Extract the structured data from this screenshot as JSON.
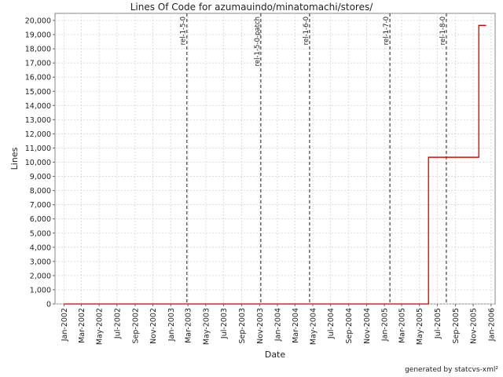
{
  "chart_data": {
    "type": "line",
    "title": "Lines Of Code for azumauindo/minatomachi/stores/",
    "xlabel": "Date",
    "ylabel": "Lines",
    "grid": true,
    "xlim": [
      "2001-12-01",
      "2006-01-15"
    ],
    "ylim": [
      0,
      20500
    ],
    "y_ticks": [
      0,
      1000,
      2000,
      3000,
      4000,
      5000,
      6000,
      7000,
      8000,
      9000,
      10000,
      11000,
      12000,
      13000,
      14000,
      15000,
      16000,
      17000,
      18000,
      19000,
      20000
    ],
    "y_tick_labels": [
      "0",
      "1,000",
      "2,000",
      "3,000",
      "4,000",
      "5,000",
      "6,000",
      "7,000",
      "8,000",
      "9,000",
      "10,000",
      "11,000",
      "12,000",
      "13,000",
      "14,000",
      "15,000",
      "16,000",
      "17,000",
      "18,000",
      "19,000",
      "20,000"
    ],
    "x_ticks": [
      "2002-01-01",
      "2002-03-01",
      "2002-05-01",
      "2002-07-01",
      "2002-09-01",
      "2002-11-01",
      "2003-01-01",
      "2003-03-01",
      "2003-05-01",
      "2003-07-01",
      "2003-09-01",
      "2003-11-01",
      "2004-01-01",
      "2004-03-01",
      "2004-05-01",
      "2004-07-01",
      "2004-09-01",
      "2004-11-01",
      "2005-01-01",
      "2005-03-01",
      "2005-05-01",
      "2005-07-01",
      "2005-09-01",
      "2005-11-01",
      "2006-01-01"
    ],
    "x_tick_labels": [
      "Jan-2002",
      "Mar-2002",
      "May-2002",
      "Jul-2002",
      "Sep-2002",
      "Nov-2002",
      "Jan-2003",
      "Mar-2003",
      "May-2003",
      "Jul-2003",
      "Sep-2003",
      "Nov-2003",
      "Jan-2004",
      "Mar-2004",
      "May-2004",
      "Jul-2004",
      "Sep-2004",
      "Nov-2004",
      "Jan-2005",
      "Mar-2005",
      "May-2005",
      "Jul-2005",
      "Sep-2005",
      "Nov-2005",
      "Jan-2006"
    ],
    "series": [
      {
        "color": "#cc0000",
        "points": [
          {
            "x": "2002-01-01",
            "y": 0
          },
          {
            "x": "2005-06-01",
            "y": 0
          },
          {
            "x": "2005-06-01",
            "y": 10350
          },
          {
            "x": "2005-11-20",
            "y": 10350
          },
          {
            "x": "2005-11-20",
            "y": 19650
          },
          {
            "x": "2005-12-15",
            "y": 19650
          }
        ]
      }
    ],
    "markers": [
      {
        "date": "2003-02-25",
        "label": "rel-1-5-0"
      },
      {
        "date": "2003-11-05",
        "label": "rel-1-5-0-patch"
      },
      {
        "date": "2004-04-20",
        "label": "rel-1-6-0"
      },
      {
        "date": "2005-01-20",
        "label": "rel-1-7-0"
      },
      {
        "date": "2005-08-01",
        "label": "rel-1-8-0"
      }
    ]
  },
  "footer": "generated by statcvs-xml²"
}
